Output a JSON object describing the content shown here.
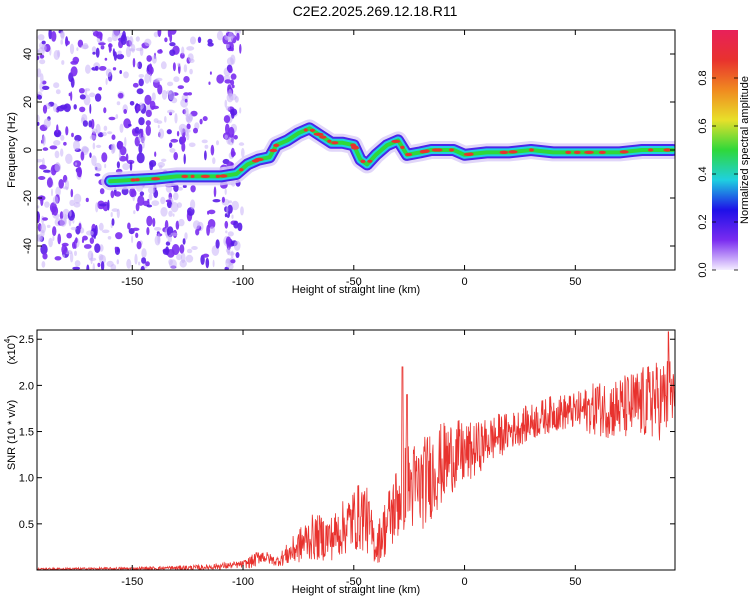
{
  "title": "C2E2.2025.269.12.18.R11",
  "colors": {
    "snr_line": "#e8322e",
    "ridge_core": "#e8322e",
    "ridge_mid": "#2fd83a",
    "ridge_outer": "#1fd0e0",
    "ridge_edge": "#3a14e8",
    "noise": "#7a2cf0"
  },
  "chart_data": [
    {
      "type": "heatmap",
      "name": "spectrogram",
      "xlabel": "Height of straight line (km)",
      "ylabel": "Frequency (Hz)",
      "xlim": [
        -193,
        95
      ],
      "ylim": [
        -50,
        50
      ],
      "xticks": [
        {
          "value": -150,
          "label": "-150"
        },
        {
          "value": -100,
          "label": "-100"
        },
        {
          "value": -50,
          "label": "-50"
        },
        {
          "value": 0,
          "label": "0"
        },
        {
          "value": 50,
          "label": "50"
        }
      ],
      "yticks": [
        {
          "value": -40,
          "label": "-40"
        },
        {
          "value": -20,
          "label": "-20"
        },
        {
          "value": 0,
          "label": "0"
        },
        {
          "value": 20,
          "label": "20"
        },
        {
          "value": 40,
          "label": "40"
        }
      ],
      "ridge_points": [
        [
          -160,
          -13
        ],
        [
          -140,
          -12
        ],
        [
          -130,
          -11
        ],
        [
          -120,
          -11
        ],
        [
          -110,
          -11
        ],
        [
          -103,
          -10
        ],
        [
          -98,
          -6
        ],
        [
          -93,
          -4
        ],
        [
          -88,
          -3
        ],
        [
          -85,
          2
        ],
        [
          -80,
          4
        ],
        [
          -75,
          7
        ],
        [
          -70,
          9
        ],
        [
          -65,
          6
        ],
        [
          -60,
          3
        ],
        [
          -55,
          3
        ],
        [
          -50,
          2
        ],
        [
          -47,
          -4
        ],
        [
          -44,
          -6
        ],
        [
          -40,
          -2
        ],
        [
          -35,
          2
        ],
        [
          -30,
          4
        ],
        [
          -26,
          -2
        ],
        [
          -20,
          -1
        ],
        [
          -15,
          0
        ],
        [
          -10,
          0
        ],
        [
          -5,
          0
        ],
        [
          0,
          -2
        ],
        [
          10,
          -1
        ],
        [
          20,
          -1
        ],
        [
          30,
          0
        ],
        [
          40,
          -1
        ],
        [
          50,
          -1
        ],
        [
          60,
          -1
        ],
        [
          70,
          -1
        ],
        [
          80,
          0
        ],
        [
          90,
          0
        ],
        [
          94,
          0
        ]
      ],
      "colorbar": {
        "label": "Normalized spectral amplitude",
        "range": [
          0,
          1
        ],
        "ticks": [
          {
            "value": 0.0,
            "label": "0.0"
          },
          {
            "value": 0.2,
            "label": "0.2"
          },
          {
            "value": 0.4,
            "label": "0.4"
          },
          {
            "value": 0.6,
            "label": "0.6"
          },
          {
            "value": 0.8,
            "label": "0.8"
          }
        ],
        "stops": [
          "#f4eeff",
          "#7a2cf0",
          "#1e10e8",
          "#1fd0e0",
          "#2fd83a",
          "#e8e02a",
          "#f08a20",
          "#e8322e",
          "#e8205a"
        ]
      }
    },
    {
      "type": "line",
      "name": "snr",
      "xlabel": "Height of straight line (km)",
      "ylabel": "SNR (10 * v/v)",
      "scale_label": "(x10",
      "scale_exponent": "4",
      "xlim": [
        -193,
        95
      ],
      "ylim": [
        0,
        26000
      ],
      "xticks": [
        {
          "value": -150,
          "label": "-150"
        },
        {
          "value": -100,
          "label": "-100"
        },
        {
          "value": -50,
          "label": "-50"
        },
        {
          "value": 0,
          "label": "0"
        },
        {
          "value": 50,
          "label": "50"
        }
      ],
      "yticks": [
        {
          "value": 5000,
          "label": "0.5"
        },
        {
          "value": 10000,
          "label": "1.0"
        },
        {
          "value": 15000,
          "label": "1.5"
        },
        {
          "value": 20000,
          "label": "2.0"
        },
        {
          "value": 25000,
          "label": "2.5"
        }
      ],
      "envelope": [
        [
          -193,
          100,
          120
        ],
        [
          -150,
          150,
          150
        ],
        [
          -120,
          250,
          300
        ],
        [
          -100,
          600,
          400
        ],
        [
          -95,
          1000,
          800
        ],
        [
          -92,
          1600,
          800
        ],
        [
          -85,
          900,
          500
        ],
        [
          -78,
          2000,
          1500
        ],
        [
          -70,
          3500,
          2500
        ],
        [
          -60,
          3500,
          2500
        ],
        [
          -50,
          5500,
          3500
        ],
        [
          -45,
          6000,
          4000
        ],
        [
          -40,
          2500,
          2000
        ],
        [
          -35,
          5000,
          3500
        ],
        [
          -30,
          7500,
          4500
        ],
        [
          -28,
          9000,
          5000
        ],
        [
          -20,
          9000,
          5000
        ],
        [
          -15,
          10500,
          5000
        ],
        [
          -10,
          11500,
          4500
        ],
        [
          -5,
          12500,
          4000
        ],
        [
          0,
          12500,
          3500
        ],
        [
          5,
          13000,
          3000
        ],
        [
          10,
          14000,
          2500
        ],
        [
          15,
          14500,
          2500
        ],
        [
          20,
          15000,
          2000
        ],
        [
          30,
          16000,
          2000
        ],
        [
          40,
          17000,
          2000
        ],
        [
          50,
          17200,
          2000
        ],
        [
          60,
          17500,
          3000
        ],
        [
          70,
          17500,
          3500
        ],
        [
          80,
          18000,
          4000
        ],
        [
          90,
          18500,
          4500
        ],
        [
          95,
          19000,
          4500
        ]
      ],
      "spikes": [
        [
          -28,
          22000
        ],
        [
          -26,
          19000
        ],
        [
          92,
          25800
        ],
        [
          60,
          19800
        ],
        [
          85,
          21500
        ]
      ]
    }
  ]
}
